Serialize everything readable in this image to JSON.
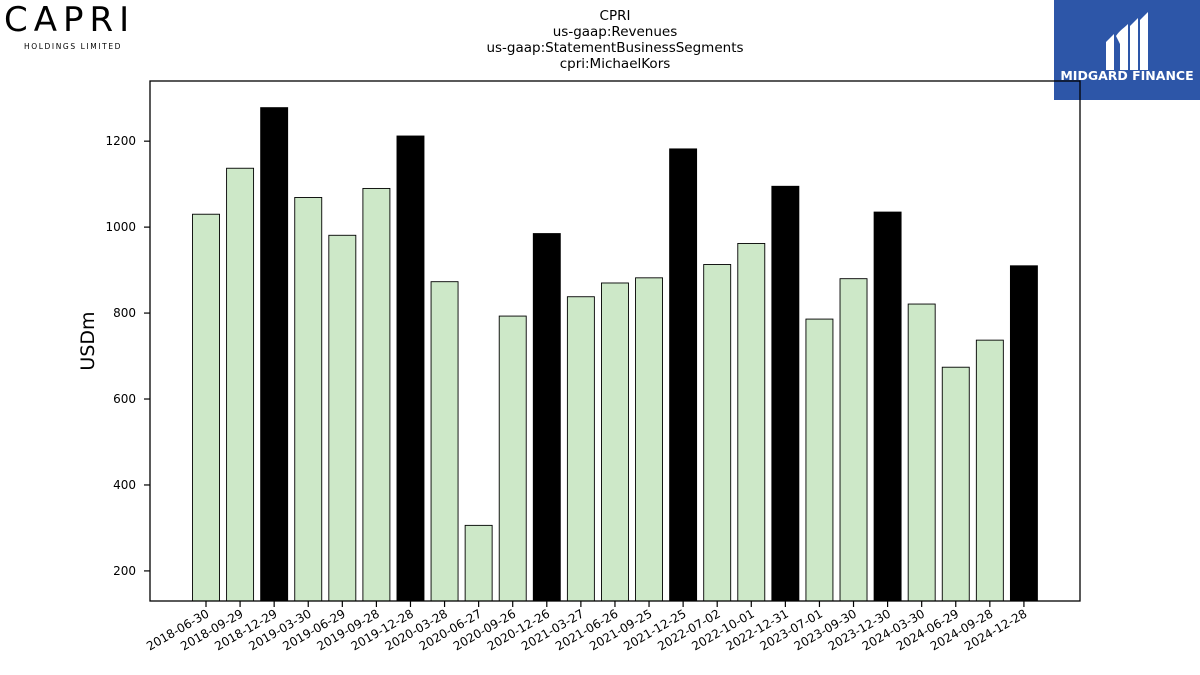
{
  "logos": {
    "left_wordmark": "CAPRI",
    "left_subtitle": "HOLDINGS LIMITED",
    "right_text": "MIDGARD FINANCE",
    "right_bg": "#2d56a8"
  },
  "chart_data": {
    "type": "bar",
    "title_lines": [
      "CPRI",
      "us-gaap:Revenues",
      "us-gaap:StatementBusinessSegments",
      "cpri:MichaelKors"
    ],
    "ylabel": "USDm",
    "xlabel": "",
    "ylim": [
      130,
      1340
    ],
    "yticks": [
      200,
      400,
      600,
      800,
      1000,
      1200
    ],
    "grid": false,
    "colors": {
      "default": "#cde8c8",
      "highlight": "#000000",
      "edge": "#000000"
    },
    "categories": [
      "2018-06-30",
      "2018-09-29",
      "2018-12-29",
      "2019-03-30",
      "2019-06-29",
      "2019-09-28",
      "2019-12-28",
      "2020-03-28",
      "2020-06-27",
      "2020-09-26",
      "2020-12-26",
      "2021-03-27",
      "2021-06-26",
      "2021-09-25",
      "2021-12-25",
      "2022-07-02",
      "2022-10-01",
      "2022-12-31",
      "2023-07-01",
      "2023-09-30",
      "2023-12-30",
      "2024-03-30",
      "2024-06-29",
      "2024-09-28",
      "2024-12-28"
    ],
    "values": [
      1030,
      1137,
      1278,
      1069,
      981,
      1090,
      1212,
      873,
      306,
      793,
      985,
      838,
      870,
      882,
      1182,
      913,
      962,
      1095,
      786,
      880,
      1035,
      821,
      674,
      737,
      910
    ],
    "highlight": [
      false,
      false,
      true,
      false,
      false,
      false,
      true,
      false,
      false,
      false,
      true,
      false,
      false,
      false,
      true,
      false,
      false,
      true,
      false,
      false,
      true,
      false,
      false,
      false,
      true
    ]
  }
}
